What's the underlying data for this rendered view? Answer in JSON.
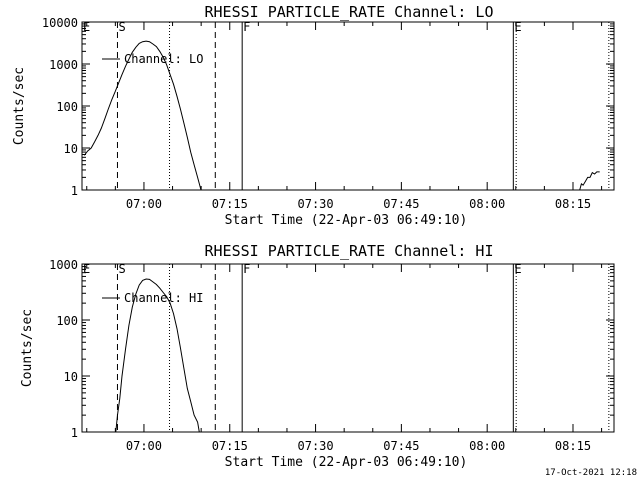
{
  "footer": {
    "timestamp": "17-Oct-2021 12:18"
  },
  "chart_data": [
    {
      "type": "line",
      "title": "RHESSI PARTICLE_RATE Channel: LO",
      "xlabel": "Start Time (22-Apr-03 06:49:10)",
      "ylabel": "Counts/sec",
      "yscale": "log",
      "ylim": [
        1,
        10000
      ],
      "y_tick_labels": [
        "1",
        "10",
        "100",
        "1000",
        "10000"
      ],
      "y_tick_values": [
        1,
        10,
        100,
        1000,
        10000
      ],
      "xlim_minutes": [
        0,
        93
      ],
      "x_tick_labels": [
        "07:00",
        "07:15",
        "07:30",
        "07:45",
        "08:00",
        "08:15"
      ],
      "x_tick_minutes": [
        10.83,
        25.83,
        40.83,
        55.83,
        70.83,
        85.83
      ],
      "legend": "Channel: LO",
      "event_markers": [
        {
          "label": "E",
          "minute": 0,
          "style": "solid"
        },
        {
          "label": "S",
          "minute": 6.2,
          "style": "dashed"
        },
        {
          "label": "",
          "minute": 15.3,
          "style": "dotted"
        },
        {
          "label": "",
          "minute": 23.3,
          "style": "dashed"
        },
        {
          "label": "F",
          "minute": 28.0,
          "style": "solid"
        },
        {
          "label": "E",
          "minute": 75.4,
          "style": "solid"
        },
        {
          "label": "",
          "minute": 75.9,
          "style": "dotted"
        },
        {
          "label": "",
          "minute": 92.1,
          "style": "dotted"
        }
      ],
      "series": [
        {
          "name": "Channel: LO",
          "segments": [
            {
              "x": [
                0.4,
                1.0,
                1.6,
                2.2,
                2.8,
                3.4,
                4.0,
                4.6,
                5.2,
                5.8,
                6.4,
                7.0,
                7.6,
                8.2,
                8.8,
                9.4,
                10.0,
                10.6,
                11.2,
                11.8,
                12.4,
                13.0,
                13.6,
                14.2,
                14.8,
                15.4,
                16.0,
                16.6,
                17.2,
                17.8,
                18.4,
                19.0,
                19.6,
                20.2,
                20.8
              ],
              "y": [
                6.7,
                8.5,
                10,
                14,
                20,
                30,
                50,
                85,
                140,
                220,
                350,
                560,
                880,
                1300,
                1900,
                2500,
                3100,
                3400,
                3500,
                3400,
                3000,
                2600,
                2000,
                1450,
                950,
                560,
                330,
                170,
                85,
                40,
                18,
                8,
                4,
                2,
                1
              ]
            },
            {
              "x": [
                87.0,
                87.3,
                87.6,
                88.0,
                88.4,
                88.8,
                89.2,
                89.6,
                90.0,
                90.5
              ],
              "y": [
                1,
                1.4,
                1.3,
                1.6,
                2.0,
                2.0,
                2.6,
                2.4,
                2.7,
                2.7
              ]
            }
          ]
        }
      ]
    },
    {
      "type": "line",
      "title": "RHESSI PARTICLE_RATE Channel: HI",
      "xlabel": "Start Time (22-Apr-03 06:49:10)",
      "ylabel": "Counts/sec",
      "yscale": "log",
      "ylim": [
        1,
        1000
      ],
      "y_tick_labels": [
        "1",
        "10",
        "100",
        "1000"
      ],
      "y_tick_values": [
        1,
        10,
        100,
        1000
      ],
      "xlim_minutes": [
        0,
        93
      ],
      "x_tick_labels": [
        "07:00",
        "07:15",
        "07:30",
        "07:45",
        "08:00",
        "08:15"
      ],
      "x_tick_minutes": [
        10.83,
        25.83,
        40.83,
        55.83,
        70.83,
        85.83
      ],
      "legend": "Channel: HI",
      "event_markers": [
        {
          "label": "E",
          "minute": 0,
          "style": "solid"
        },
        {
          "label": "S",
          "minute": 6.2,
          "style": "dashed"
        },
        {
          "label": "",
          "minute": 15.3,
          "style": "dotted"
        },
        {
          "label": "",
          "minute": 23.3,
          "style": "dashed"
        },
        {
          "label": "F",
          "minute": 28.0,
          "style": "solid"
        },
        {
          "label": "E",
          "minute": 75.4,
          "style": "solid"
        },
        {
          "label": "",
          "minute": 75.9,
          "style": "dotted"
        },
        {
          "label": "",
          "minute": 92.1,
          "style": "dotted"
        }
      ],
      "series": [
        {
          "name": "Channel: HI",
          "segments": [
            {
              "x": [
                5.9,
                6.2,
                6.6,
                7.0,
                7.6,
                8.2,
                8.8,
                9.4,
                10.0,
                10.6,
                11.2,
                11.8,
                12.4,
                13.0,
                13.6,
                14.2,
                14.8,
                15.4,
                16.0,
                16.6,
                17.2,
                17.8,
                18.4,
                19.0,
                19.6,
                20.2,
                20.5
              ],
              "y": [
                1,
                2,
                4,
                10,
                30,
                80,
                170,
                290,
                420,
                510,
                540,
                530,
                480,
                430,
                370,
                310,
                260,
                200,
                130,
                70,
                32,
                14,
                6,
                3.5,
                2,
                1.5,
                1
              ]
            }
          ]
        }
      ]
    }
  ]
}
